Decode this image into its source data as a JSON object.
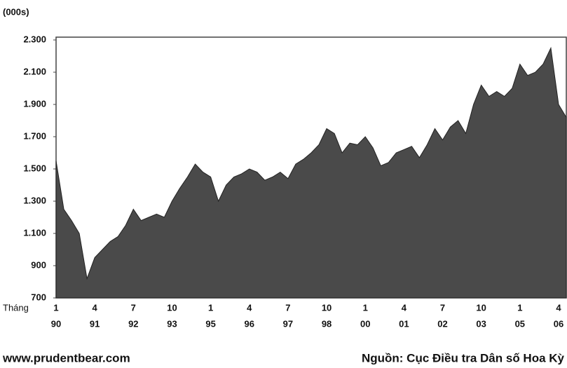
{
  "chart_data": {
    "type": "area",
    "y_label": "(000s)",
    "x_label": "Tháng",
    "footer_left": "www.prudentbear.com",
    "footer_right": "Nguồn: Cục Điều tra Dân số Hoa Kỳ",
    "color": "#4a4a4a",
    "categories": [
      "1",
      null,
      null,
      null,
      null,
      "4",
      null,
      null,
      null,
      null,
      "7",
      null,
      null,
      null,
      null,
      "10",
      null,
      null,
      null,
      null,
      "1",
      null,
      null,
      null,
      null,
      "4",
      null,
      null,
      null,
      null,
      "7",
      null,
      null,
      null,
      null,
      "10",
      null,
      null,
      null,
      null,
      "1",
      null,
      null,
      null,
      null,
      "4",
      null,
      null,
      null,
      null,
      "7",
      null,
      null,
      null,
      null,
      "10",
      null,
      null,
      null,
      null,
      "1",
      null,
      null,
      null,
      null,
      "4",
      null
    ],
    "category_years": [
      "90",
      null,
      null,
      null,
      null,
      "91",
      null,
      null,
      null,
      null,
      "92",
      null,
      null,
      null,
      null,
      "93",
      null,
      null,
      null,
      null,
      "95",
      null,
      null,
      null,
      null,
      "96",
      null,
      null,
      null,
      null,
      "97",
      null,
      null,
      null,
      null,
      "98",
      null,
      null,
      null,
      null,
      "00",
      null,
      null,
      null,
      null,
      "01",
      null,
      null,
      null,
      null,
      "02",
      null,
      null,
      null,
      null,
      "03",
      null,
      null,
      null,
      null,
      "05",
      null,
      null,
      null,
      null,
      "06",
      null
    ],
    "values": [
      1550,
      1250,
      1180,
      1100,
      820,
      950,
      1000,
      1050,
      1080,
      1150,
      1250,
      1180,
      1200,
      1220,
      1200,
      1300,
      1380,
      1450,
      1530,
      1480,
      1450,
      1300,
      1400,
      1450,
      1470,
      1500,
      1480,
      1430,
      1450,
      1480,
      1440,
      1530,
      1560,
      1600,
      1650,
      1750,
      1720,
      1600,
      1660,
      1650,
      1700,
      1630,
      1520,
      1540,
      1600,
      1620,
      1640,
      1570,
      1650,
      1750,
      1680,
      1760,
      1800,
      1720,
      1900,
      2020,
      1950,
      1980,
      1950,
      2000,
      2150,
      2080,
      2100,
      2150,
      2250,
      1900,
      1820
    ],
    "ylim": [
      700,
      2300
    ],
    "yticks": [
      700,
      900,
      {
        "value": 1100,
        "label": "1.100"
      },
      {
        "value": 1300,
        "label": "1.300"
      },
      {
        "value": 1500,
        "label": "1.500"
      },
      {
        "value": 1700,
        "label": "1.700"
      },
      {
        "value": 1900,
        "label": "1.900"
      },
      {
        "value": 2100,
        "label": "2.100"
      },
      {
        "value": 2300,
        "label": "2.300"
      }
    ]
  }
}
